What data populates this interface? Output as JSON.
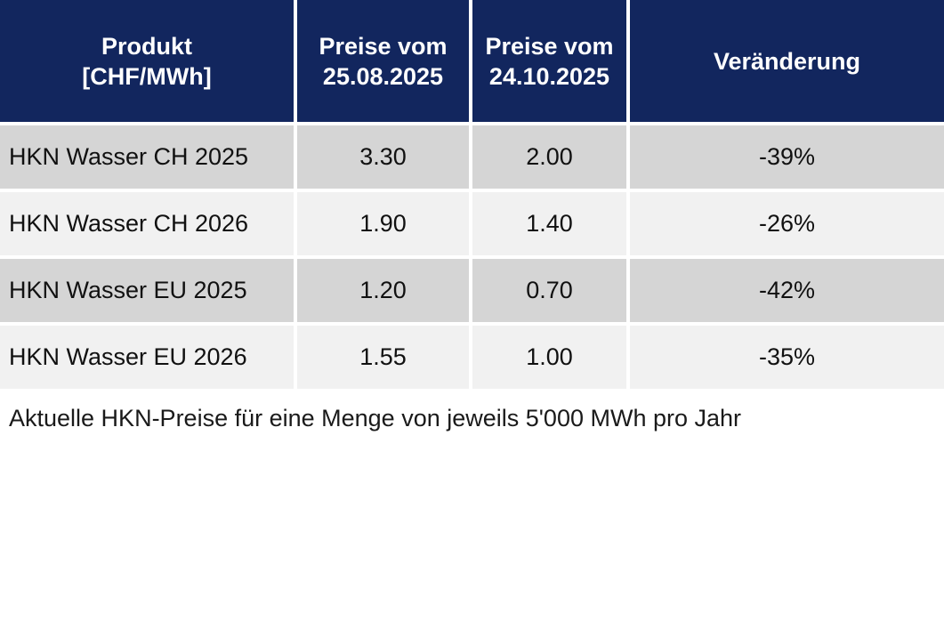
{
  "table": {
    "columns": [
      {
        "label": "Produkt\n[CHF/MWh]"
      },
      {
        "label": "Preise vom\n25.08.2025"
      },
      {
        "label": "Preise vom\n24.10.2025"
      },
      {
        "label": "Veränderung"
      }
    ],
    "rows": [
      {
        "product": "HKN Wasser CH 2025",
        "price_old": "3.30",
        "price_new": "2.00",
        "change": "-39%"
      },
      {
        "product": "HKN Wasser CH 2026",
        "price_old": "1.90",
        "price_new": "1.40",
        "change": "-26%"
      },
      {
        "product": "HKN Wasser EU 2025",
        "price_old": "1.20",
        "price_new": "0.70",
        "change": "-42%"
      },
      {
        "product": "HKN Wasser EU 2026",
        "price_old": "1.55",
        "price_new": "1.00",
        "change": "-35%"
      }
    ]
  },
  "caption": "Aktuelle HKN-Preise für eine Menge von jeweils 5'000 MWh pro Jahr",
  "colors": {
    "header_bg": "#12265e",
    "header_text": "#ffffff",
    "row_dark": "#d5d5d5",
    "row_light": "#f1f1f1",
    "body_text": "#111111",
    "separator": "#ffffff"
  },
  "chart_data": {
    "type": "table",
    "title": "",
    "columns": [
      "Produkt [CHF/MWh]",
      "Preise vom 25.08.2025",
      "Preise vom 24.10.2025",
      "Veränderung"
    ],
    "unit": "CHF/MWh",
    "rows": [
      [
        "HKN Wasser CH 2025",
        3.3,
        2.0,
        "-39%"
      ],
      [
        "HKN Wasser CH 2026",
        1.9,
        1.4,
        "-26%"
      ],
      [
        "HKN Wasser EU 2025",
        1.2,
        0.7,
        "-42%"
      ],
      [
        "HKN Wasser EU 2026",
        1.55,
        1.0,
        "-35%"
      ]
    ],
    "caption": "Aktuelle HKN-Preise für eine Menge von jeweils 5'000 MWh pro Jahr"
  }
}
